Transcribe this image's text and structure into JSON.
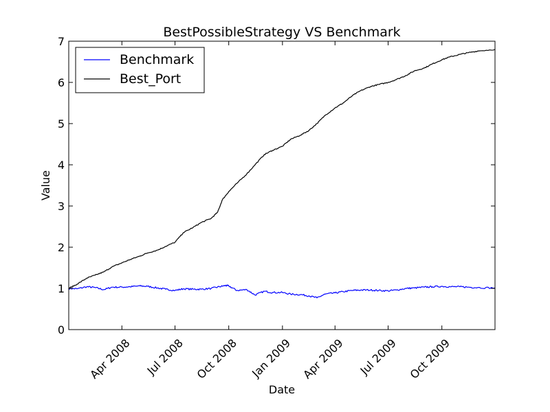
{
  "chart_data": {
    "type": "line",
    "title": "BestPossibleStrategy VS Benchmark",
    "xlabel": "Date",
    "ylabel": "Value",
    "xlim": [
      "2008-01-01",
      "2009-12-31"
    ],
    "ylim": [
      0,
      7
    ],
    "yticks": [
      0,
      1,
      2,
      3,
      4,
      5,
      6,
      7
    ],
    "xticks": [
      {
        "date": "2008-04-01",
        "label": "Apr 2008"
      },
      {
        "date": "2008-07-01",
        "label": "Jul 2008"
      },
      {
        "date": "2008-10-01",
        "label": "Oct 2008"
      },
      {
        "date": "2009-01-01",
        "label": "Jan 2009"
      },
      {
        "date": "2009-04-01",
        "label": "Apr 2009"
      },
      {
        "date": "2009-07-01",
        "label": "Jul 2009"
      },
      {
        "date": "2009-10-01",
        "label": "Oct 2009"
      }
    ],
    "grid": false,
    "legend": "top-left",
    "series": [
      {
        "name": "Benchmark",
        "color": "#0000ff",
        "points": [
          [
            "2008-01-01",
            1.0
          ],
          [
            "2008-01-15",
            0.99
          ],
          [
            "2008-02-01",
            1.04
          ],
          [
            "2008-02-15",
            1.02
          ],
          [
            "2008-03-01",
            0.97
          ],
          [
            "2008-03-15",
            1.03
          ],
          [
            "2008-04-01",
            1.03
          ],
          [
            "2008-04-15",
            1.04
          ],
          [
            "2008-05-01",
            1.06
          ],
          [
            "2008-05-15",
            1.05
          ],
          [
            "2008-06-01",
            1.01
          ],
          [
            "2008-06-15",
            0.98
          ],
          [
            "2008-07-01",
            0.95
          ],
          [
            "2008-07-15",
            0.99
          ],
          [
            "2008-08-01",
            0.98
          ],
          [
            "2008-08-15",
            0.98
          ],
          [
            "2008-09-01",
            1.0
          ],
          [
            "2008-09-15",
            1.04
          ],
          [
            "2008-09-25",
            1.07
          ],
          [
            "2008-10-01",
            1.06
          ],
          [
            "2008-10-15",
            0.95
          ],
          [
            "2008-11-01",
            0.97
          ],
          [
            "2008-11-15",
            0.84
          ],
          [
            "2008-12-01",
            0.93
          ],
          [
            "2008-12-15",
            0.9
          ],
          [
            "2009-01-01",
            0.9
          ],
          [
            "2009-01-15",
            0.86
          ],
          [
            "2009-02-01",
            0.85
          ],
          [
            "2009-02-15",
            0.82
          ],
          [
            "2009-03-01",
            0.77
          ],
          [
            "2009-03-15",
            0.86
          ],
          [
            "2009-04-01",
            0.89
          ],
          [
            "2009-04-15",
            0.92
          ],
          [
            "2009-05-01",
            0.95
          ],
          [
            "2009-05-15",
            0.96
          ],
          [
            "2009-06-01",
            0.96
          ],
          [
            "2009-06-15",
            0.95
          ],
          [
            "2009-07-01",
            0.94
          ],
          [
            "2009-07-15",
            0.96
          ],
          [
            "2009-08-01",
            1.0
          ],
          [
            "2009-08-15",
            1.01
          ],
          [
            "2009-09-01",
            1.03
          ],
          [
            "2009-09-15",
            1.04
          ],
          [
            "2009-10-01",
            1.05
          ],
          [
            "2009-10-15",
            1.04
          ],
          [
            "2009-11-01",
            1.04
          ],
          [
            "2009-11-15",
            1.03
          ],
          [
            "2009-12-01",
            1.02
          ],
          [
            "2009-12-31",
            1.01
          ]
        ]
      },
      {
        "name": "Best_Port",
        "color": "#000000",
        "points": [
          [
            "2008-01-01",
            1.0
          ],
          [
            "2008-01-15",
            1.1
          ],
          [
            "2008-02-01",
            1.25
          ],
          [
            "2008-02-15",
            1.32
          ],
          [
            "2008-03-01",
            1.4
          ],
          [
            "2008-03-15",
            1.52
          ],
          [
            "2008-04-01",
            1.62
          ],
          [
            "2008-04-15",
            1.7
          ],
          [
            "2008-05-01",
            1.78
          ],
          [
            "2008-05-15",
            1.86
          ],
          [
            "2008-06-01",
            1.93
          ],
          [
            "2008-06-15",
            2.02
          ],
          [
            "2008-07-01",
            2.12
          ],
          [
            "2008-07-15",
            2.35
          ],
          [
            "2008-08-01",
            2.48
          ],
          [
            "2008-08-15",
            2.6
          ],
          [
            "2008-09-01",
            2.7
          ],
          [
            "2008-09-12",
            2.85
          ],
          [
            "2008-09-20",
            3.15
          ],
          [
            "2008-10-01",
            3.35
          ],
          [
            "2008-10-15",
            3.55
          ],
          [
            "2008-11-01",
            3.78
          ],
          [
            "2008-11-15",
            4.0
          ],
          [
            "2008-12-01",
            4.25
          ],
          [
            "2008-12-15",
            4.35
          ],
          [
            "2009-01-01",
            4.45
          ],
          [
            "2009-01-15",
            4.62
          ],
          [
            "2009-02-01",
            4.72
          ],
          [
            "2009-02-15",
            4.83
          ],
          [
            "2009-03-01",
            5.0
          ],
          [
            "2009-03-15",
            5.2
          ],
          [
            "2009-04-01",
            5.38
          ],
          [
            "2009-04-15",
            5.5
          ],
          [
            "2009-05-01",
            5.68
          ],
          [
            "2009-05-15",
            5.8
          ],
          [
            "2009-06-01",
            5.9
          ],
          [
            "2009-06-15",
            5.95
          ],
          [
            "2009-07-01",
            6.0
          ],
          [
            "2009-07-15",
            6.07
          ],
          [
            "2009-08-01",
            6.17
          ],
          [
            "2009-08-15",
            6.28
          ],
          [
            "2009-09-01",
            6.35
          ],
          [
            "2009-09-15",
            6.45
          ],
          [
            "2009-10-01",
            6.55
          ],
          [
            "2009-10-15",
            6.62
          ],
          [
            "2009-11-01",
            6.68
          ],
          [
            "2009-11-15",
            6.72
          ],
          [
            "2009-12-01",
            6.76
          ],
          [
            "2009-12-31",
            6.8
          ]
        ]
      }
    ]
  }
}
